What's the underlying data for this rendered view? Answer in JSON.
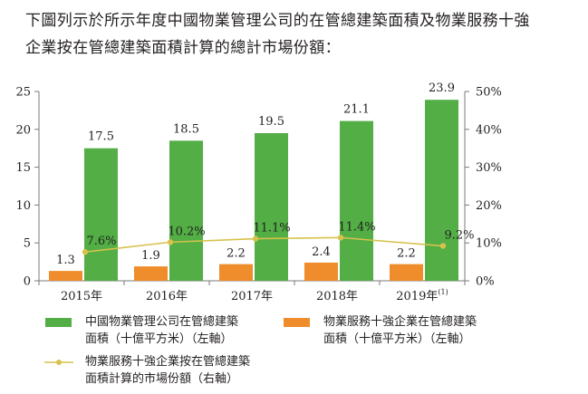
{
  "intro": {
    "line1": "下圖列示於所示年度中國物業管理公司的在管總建築面積及物業服務十強",
    "line2": "企業按在管總建築面積計算的總計市場份額："
  },
  "chart_data": {
    "type": "bar",
    "categories": [
      "2015年",
      "2016年",
      "2017年",
      "2018年",
      "2019年"
    ],
    "category_superscripts": [
      "",
      "",
      "",
      "",
      "(1)"
    ],
    "series": [
      {
        "name": "中國物業管理公司在管總建築面積（十億平方米）（左軸）",
        "axis": "left",
        "type": "bar",
        "values": [
          17.5,
          18.5,
          19.5,
          21.1,
          23.9
        ],
        "labels": [
          "17.5",
          "18.5",
          "19.5",
          "21.1",
          "23.9"
        ],
        "color": "#52ae45"
      },
      {
        "name": "物業服務十強企業在管總建築面積（十億平方米）（左軸）",
        "axis": "left",
        "type": "bar",
        "values": [
          1.3,
          1.9,
          2.2,
          2.4,
          2.2
        ],
        "labels": [
          "1.3",
          "1.9",
          "2.2",
          "2.4",
          "2.2"
        ],
        "color": "#ef8c2b"
      },
      {
        "name": "物業服務十強企業按在管總建築面積計算的市場份額（右軸）",
        "axis": "right",
        "type": "line",
        "values": [
          7.6,
          10.2,
          11.1,
          11.4,
          9.2
        ],
        "labels": [
          "7.6%",
          "10.2%",
          "11.1%",
          "11.4%",
          "9.2%"
        ],
        "color": "#d6c24c"
      }
    ],
    "left_axis": {
      "min": 0,
      "max": 25,
      "ticks": [
        "0",
        "5",
        "10",
        "15",
        "20",
        "25"
      ]
    },
    "right_axis": {
      "min": 0,
      "max": 50,
      "ticks": [
        "0%",
        "10%",
        "20%",
        "30%",
        "40%",
        "50%"
      ]
    },
    "grid": false
  },
  "legend": {
    "green_line1": "中國物業管理公司在管總建築",
    "green_line2": "面積（十億平方米）（左軸）",
    "orange_line1": "物業服務十強企業在管總建築",
    "orange_line2": "面積（十億平方米）（左軸）",
    "line_line1": "物業服務十強企業按在管總建築",
    "line_line2": "面積計算的市場份額（右軸）"
  }
}
